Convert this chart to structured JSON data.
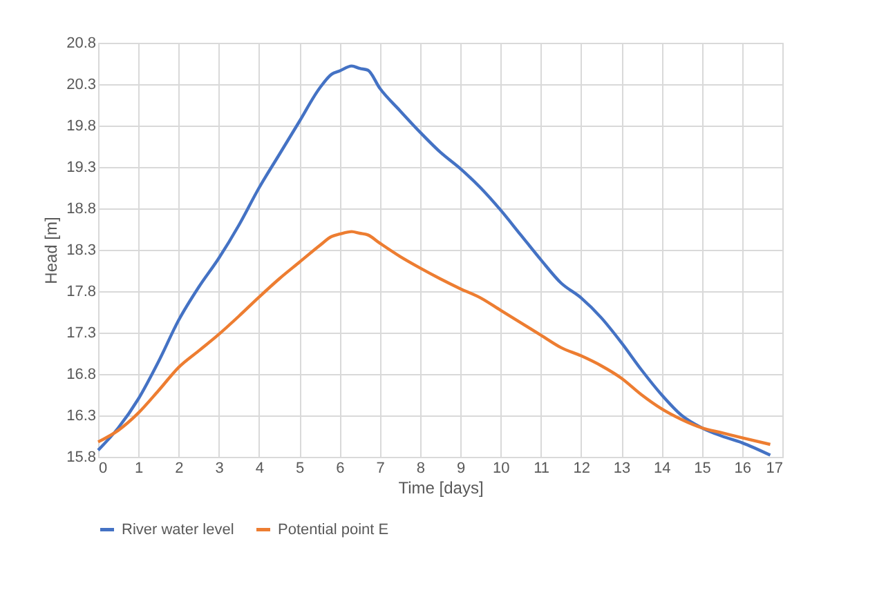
{
  "chart_data": {
    "type": "line",
    "xlabel": "Time [days]",
    "ylabel": "Head [m]",
    "xlim": [
      0,
      17
    ],
    "xticks": [
      0,
      1,
      2,
      3,
      4,
      5,
      6,
      7,
      8,
      9,
      10,
      11,
      12,
      13,
      14,
      15,
      16,
      17
    ],
    "ylim": [
      15.8,
      20.8
    ],
    "yticks": [
      15.8,
      16.3,
      16.8,
      17.3,
      17.8,
      18.3,
      18.8,
      19.3,
      19.8,
      20.3,
      20.8
    ],
    "grid": true,
    "legend": "bottom",
    "marker": "none",
    "line_style": "solid",
    "x": [
      0,
      0.5,
      1,
      1.5,
      2,
      2.5,
      3,
      3.5,
      4,
      4.5,
      5,
      5.5,
      5.8,
      6,
      6.3,
      6.5,
      6.7,
      7,
      7.5,
      8,
      8.5,
      9,
      9.5,
      10,
      10.5,
      11,
      11.5,
      12,
      12.5,
      13,
      13.5,
      14,
      14.5,
      15,
      15.5,
      16,
      16.7
    ],
    "series": [
      {
        "name": "River water level",
        "color": "#4472c4",
        "values": [
          15.88,
          16.15,
          16.5,
          16.95,
          17.45,
          17.85,
          18.2,
          18.6,
          19.05,
          19.45,
          19.85,
          20.25,
          20.42,
          20.46,
          20.52,
          20.49,
          20.47,
          20.25,
          19.98,
          19.72,
          19.48,
          19.28,
          19.05,
          18.78,
          18.48,
          18.18,
          17.9,
          17.72,
          17.48,
          17.18,
          16.85,
          16.55,
          16.3,
          16.15,
          16.05,
          15.97,
          15.82
        ]
      },
      {
        "name": "Potential point E",
        "color": "#ed7d31",
        "values": [
          15.98,
          16.12,
          16.33,
          16.6,
          16.88,
          17.08,
          17.28,
          17.5,
          17.73,
          17.95,
          18.15,
          18.35,
          18.46,
          18.49,
          18.52,
          18.5,
          18.48,
          18.38,
          18.22,
          18.08,
          17.95,
          17.83,
          17.72,
          17.57,
          17.42,
          17.27,
          17.12,
          17.02,
          16.9,
          16.75,
          16.55,
          16.38,
          16.25,
          16.15,
          16.09,
          16.03,
          15.95
        ]
      }
    ]
  }
}
